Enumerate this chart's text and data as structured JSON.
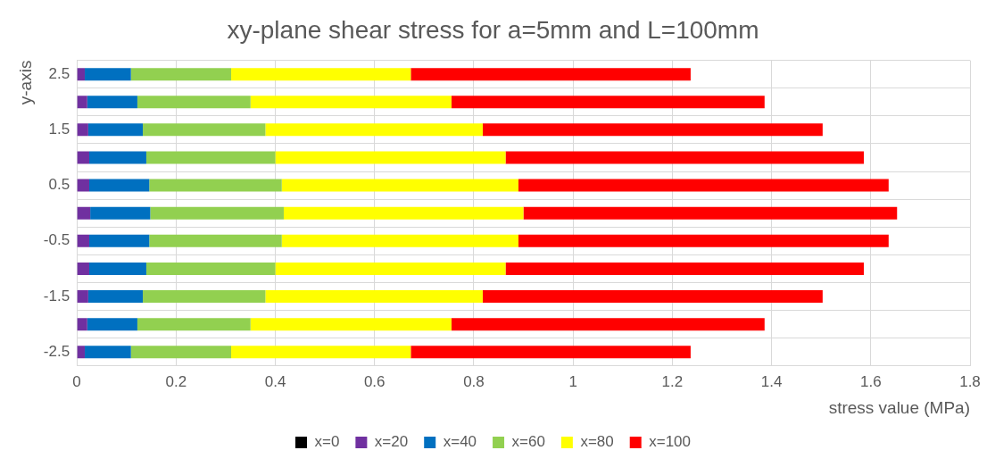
{
  "chart_data": {
    "type": "bar",
    "orientation": "horizontal",
    "stacked": true,
    "title": "xy-plane shear stress for a=5mm and L=100mm",
    "xlabel": "stress value (MPa)",
    "ylabel": "y-axis",
    "categories": [
      "2.5",
      null,
      "1.5",
      null,
      "0.5",
      null,
      "-0.5",
      null,
      "-1.5",
      null,
      "-2.5"
    ],
    "series": [
      {
        "name": "x=0",
        "color": "#000000",
        "values": [
          0,
          0,
          0,
          0,
          0,
          0,
          0,
          0,
          0,
          0,
          0
        ]
      },
      {
        "name": "x=20",
        "color": "#7030a0",
        "values": [
          0.016,
          0.021,
          0.023,
          0.025,
          0.025,
          0.027,
          0.025,
          0.025,
          0.023,
          0.021,
          0.016
        ]
      },
      {
        "name": "x=40",
        "color": "#0070c0",
        "values": [
          0.093,
          0.101,
          0.11,
          0.115,
          0.121,
          0.121,
          0.121,
          0.115,
          0.11,
          0.101,
          0.093
        ]
      },
      {
        "name": "x=60",
        "color": "#92d050",
        "values": [
          0.202,
          0.228,
          0.247,
          0.26,
          0.267,
          0.269,
          0.267,
          0.26,
          0.247,
          0.228,
          0.202
        ]
      },
      {
        "name": "x=80",
        "color": "#ffff00",
        "values": [
          0.362,
          0.405,
          0.438,
          0.464,
          0.477,
          0.483,
          0.477,
          0.464,
          0.438,
          0.405,
          0.362
        ]
      },
      {
        "name": "x=100",
        "color": "#ff0000",
        "values": [
          0.564,
          0.631,
          0.685,
          0.722,
          0.746,
          0.753,
          0.746,
          0.722,
          0.685,
          0.631,
          0.564
        ]
      }
    ],
    "xlim": [
      0,
      1.8
    ],
    "xticks": [
      0,
      0.2,
      0.4,
      0.6,
      0.8,
      1,
      1.2,
      1.4,
      1.6,
      1.8
    ],
    "grid": true,
    "legend": "bottom"
  }
}
